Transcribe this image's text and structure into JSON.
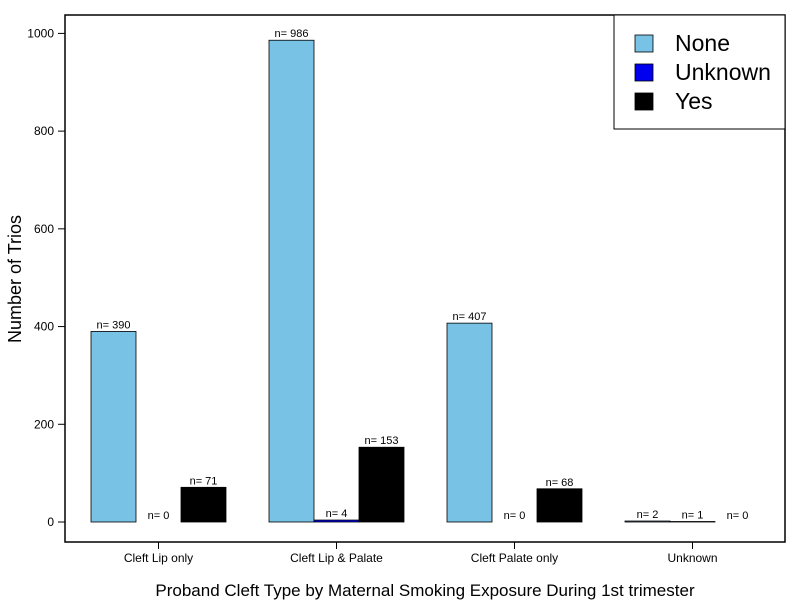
{
  "chart_data": {
    "type": "bar",
    "xlabel": "Proband Cleft Type by Maternal Smoking Exposure During 1st trimester",
    "ylabel": "Number of Trios",
    "ylim": [
      0,
      1050
    ],
    "yticks": [
      0,
      200,
      400,
      600,
      800,
      1000
    ],
    "grid": false,
    "legend_position": "top-right",
    "categories": [
      "Cleft Lip only",
      "Cleft Lip & Palate",
      "Cleft Palate only",
      "Unknown"
    ],
    "series": [
      {
        "name": "None",
        "color": "#78c2e6",
        "values": [
          390,
          986,
          407,
          2
        ],
        "labels": [
          "n= 390",
          "n= 986",
          "n= 407",
          "n= 2"
        ]
      },
      {
        "name": "Unknown",
        "color": "#0000ee",
        "values": [
          0,
          4,
          0,
          1
        ],
        "labels": [
          "n= 0",
          "n= 4",
          "n= 0",
          "n= 1"
        ]
      },
      {
        "name": "Yes",
        "color": "#000000",
        "values": [
          71,
          153,
          68,
          0
        ],
        "labels": [
          "n= 71",
          "n= 153",
          "n= 68",
          "n= 0"
        ]
      }
    ]
  }
}
